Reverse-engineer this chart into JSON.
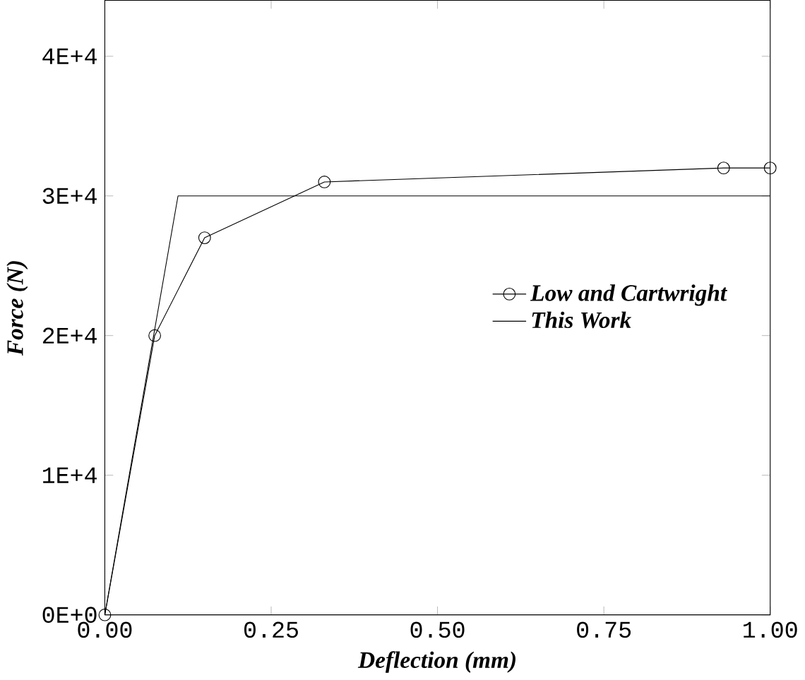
{
  "chart_data": {
    "type": "line",
    "xlabel": "Deflection (mm)",
    "ylabel": "Force (N)",
    "xlim": [
      0,
      1
    ],
    "ylim": [
      0,
      44000
    ],
    "xticks": [
      {
        "value": 0,
        "label": "0.00"
      },
      {
        "value": 0.25,
        "label": "0.25"
      },
      {
        "value": 0.5,
        "label": "0.50"
      },
      {
        "value": 0.75,
        "label": "0.75"
      },
      {
        "value": 1,
        "label": "1.00"
      }
    ],
    "yticks": [
      {
        "value": 0,
        "label": "0E+0"
      },
      {
        "value": 10000,
        "label": "1E+4"
      },
      {
        "value": 20000,
        "label": "2E+4"
      },
      {
        "value": 30000,
        "label": "3E+4"
      },
      {
        "value": 40000,
        "label": "4E+4"
      }
    ],
    "legend": "right",
    "grid": false,
    "series": [
      {
        "name": "Low and Cartwright",
        "color": "#000000",
        "marker": "circle",
        "x": [
          0,
          0.075,
          0.15,
          0.33,
          0.93,
          1.0
        ],
        "values": [
          0,
          20000,
          27000,
          31000,
          32000,
          32000
        ]
      },
      {
        "name": "This Work",
        "color": "#000000",
        "marker": "none",
        "x": [
          0,
          0.11,
          1.0
        ],
        "values": [
          0,
          30000,
          30000
        ]
      }
    ]
  }
}
